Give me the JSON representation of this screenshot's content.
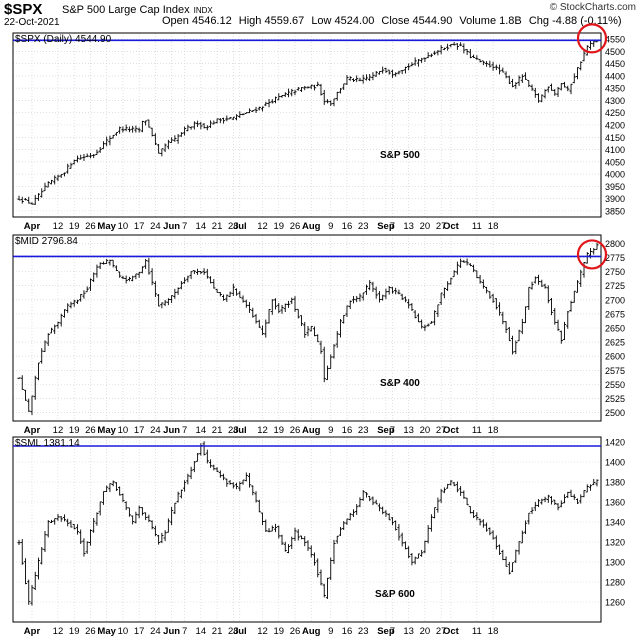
{
  "header": {
    "ticker": "$SPX",
    "name": "S&P 500 Large Cap Index",
    "exchange": "INDX",
    "date": "22-Oct-2021",
    "open": "Open 4546.12",
    "high": "High 4559.67",
    "low": "Low 4524.00",
    "close": "Close 4544.90",
    "volume": "Volume 1.8B",
    "change": "Chg -4.88 (-0.11%)",
    "copyright": "© StockCharts.com"
  },
  "colors": {
    "bars": "#000000",
    "resistance_line": "#1a1adc",
    "highlight_circle": "#e0161b",
    "grid": "#cccccc",
    "panel_border": "#000000"
  },
  "chart_data": [
    {
      "type": "line",
      "style": "ohlc-bars",
      "legend": "$SPX (Daily) 4544.90",
      "label": "S&P 500",
      "ylim": [
        3825,
        4575
      ],
      "yticks": [
        3850,
        3900,
        3950,
        4000,
        4050,
        4100,
        4150,
        4200,
        4250,
        4300,
        4350,
        4400,
        4450,
        4500,
        4550
      ],
      "ytick_labels": [
        "3850",
        "3900",
        "3950",
        "4000",
        "4050",
        "4100",
        "4150",
        "4200",
        "4250",
        "4300",
        "4350",
        "4400",
        "4450",
        "4500",
        "4550"
      ],
      "horizontal_line": 4545,
      "highlight_at_end": true,
      "anchors": [
        [
          0,
          3900
        ],
        [
          4,
          3880
        ],
        [
          9,
          3960
        ],
        [
          14,
          4010
        ],
        [
          17,
          4060
        ],
        [
          23,
          4080
        ],
        [
          27,
          4135
        ],
        [
          31,
          4185
        ],
        [
          37,
          4180
        ],
        [
          38,
          4210
        ],
        [
          39,
          4220
        ],
        [
          41,
          4160
        ],
        [
          43,
          4080
        ],
        [
          46,
          4130
        ],
        [
          48,
          4140
        ],
        [
          51,
          4180
        ],
        [
          55,
          4210
        ],
        [
          57,
          4190
        ],
        [
          61,
          4220
        ],
        [
          66,
          4230
        ],
        [
          70,
          4250
        ],
        [
          74,
          4270
        ],
        [
          78,
          4300
        ],
        [
          83,
          4330
        ],
        [
          87,
          4350
        ],
        [
          92,
          4360
        ],
        [
          94,
          4300
        ],
        [
          96,
          4290
        ],
        [
          101,
          4390
        ],
        [
          105,
          4380
        ],
        [
          109,
          4400
        ],
        [
          112,
          4430
        ],
        [
          115,
          4410
        ],
        [
          120,
          4440
        ],
        [
          124,
          4470
        ],
        [
          127,
          4490
        ],
        [
          130,
          4510
        ],
        [
          134,
          4530
        ],
        [
          136,
          4520
        ],
        [
          139,
          4480
        ],
        [
          143,
          4450
        ],
        [
          146,
          4440
        ],
        [
          149,
          4410
        ],
        [
          152,
          4360
        ],
        [
          155,
          4400
        ],
        [
          157,
          4360
        ],
        [
          160,
          4300
        ],
        [
          163,
          4360
        ],
        [
          165,
          4330
        ],
        [
          167,
          4370
        ],
        [
          169,
          4340
        ],
        [
          171,
          4400
        ],
        [
          173,
          4460
        ],
        [
          175,
          4520
        ],
        [
          178,
          4545
        ]
      ]
    },
    {
      "type": "line",
      "style": "ohlc-bars",
      "legend": "$MID 2796.84",
      "label": "S&P 400",
      "ylim": [
        2485,
        2815
      ],
      "yticks": [
        2500,
        2525,
        2550,
        2575,
        2600,
        2625,
        2650,
        2675,
        2700,
        2725,
        2750,
        2775,
        2800
      ],
      "ytick_labels": [
        "2500",
        "2525",
        "2550",
        "2575",
        "2600",
        "2625",
        "2650",
        "2675",
        "2700",
        "2725",
        "2750",
        "2775",
        "2800"
      ],
      "horizontal_line": 2777,
      "highlight_at_end": true,
      "anchors": [
        [
          0,
          2560
        ],
        [
          3,
          2500
        ],
        [
          6,
          2590
        ],
        [
          9,
          2640
        ],
        [
          12,
          2660
        ],
        [
          15,
          2690
        ],
        [
          18,
          2700
        ],
        [
          21,
          2720
        ],
        [
          24,
          2760
        ],
        [
          28,
          2770
        ],
        [
          31,
          2740
        ],
        [
          34,
          2735
        ],
        [
          37,
          2750
        ],
        [
          39,
          2770
        ],
        [
          41,
          2730
        ],
        [
          43,
          2690
        ],
        [
          47,
          2705
        ],
        [
          50,
          2730
        ],
        [
          53,
          2750
        ],
        [
          57,
          2750
        ],
        [
          60,
          2720
        ],
        [
          63,
          2700
        ],
        [
          66,
          2720
        ],
        [
          70,
          2690
        ],
        [
          73,
          2660
        ],
        [
          75,
          2640
        ],
        [
          78,
          2700
        ],
        [
          80,
          2680
        ],
        [
          84,
          2700
        ],
        [
          88,
          2640
        ],
        [
          90,
          2650
        ],
        [
          93,
          2610
        ],
        [
          94,
          2560
        ],
        [
          96,
          2600
        ],
        [
          99,
          2660
        ],
        [
          102,
          2700
        ],
        [
          105,
          2705
        ],
        [
          108,
          2730
        ],
        [
          111,
          2700
        ],
        [
          114,
          2720
        ],
        [
          117,
          2710
        ],
        [
          120,
          2690
        ],
        [
          124,
          2650
        ],
        [
          127,
          2660
        ],
        [
          130,
          2710
        ],
        [
          133,
          2740
        ],
        [
          136,
          2770
        ],
        [
          139,
          2760
        ],
        [
          142,
          2730
        ],
        [
          146,
          2700
        ],
        [
          150,
          2650
        ],
        [
          152,
          2610
        ],
        [
          155,
          2660
        ],
        [
          157,
          2720
        ],
        [
          159,
          2740
        ],
        [
          162,
          2720
        ],
        [
          165,
          2660
        ],
        [
          167,
          2630
        ],
        [
          169,
          2680
        ],
        [
          172,
          2730
        ],
        [
          175,
          2780
        ],
        [
          178,
          2797
        ]
      ]
    },
    {
      "type": "line",
      "style": "ohlc-bars",
      "legend": "$SML 1381.14",
      "label": "S&P 600",
      "ylim": [
        1240,
        1425
      ],
      "yticks": [
        1260,
        1280,
        1300,
        1320,
        1340,
        1360,
        1380,
        1400,
        1420
      ],
      "ytick_labels": [
        "1260",
        "1280",
        "1300",
        "1320",
        "1340",
        "1360",
        "1380",
        "1400",
        "1420"
      ],
      "horizontal_line": 1416,
      "highlight_at_end": false,
      "anchors": [
        [
          0,
          1320
        ],
        [
          3,
          1260
        ],
        [
          6,
          1300
        ],
        [
          9,
          1340
        ],
        [
          12,
          1345
        ],
        [
          15,
          1340
        ],
        [
          18,
          1330
        ],
        [
          20,
          1310
        ],
        [
          23,
          1340
        ],
        [
          26,
          1370
        ],
        [
          29,
          1380
        ],
        [
          32,
          1360
        ],
        [
          35,
          1340
        ],
        [
          37,
          1355
        ],
        [
          40,
          1340
        ],
        [
          43,
          1320
        ],
        [
          45,
          1330
        ],
        [
          48,
          1360
        ],
        [
          51,
          1380
        ],
        [
          54,
          1400
        ],
        [
          56,
          1418
        ],
        [
          58,
          1400
        ],
        [
          61,
          1390
        ],
        [
          64,
          1380
        ],
        [
          67,
          1375
        ],
        [
          70,
          1385
        ],
        [
          73,
          1360
        ],
        [
          76,
          1330
        ],
        [
          79,
          1335
        ],
        [
          82,
          1310
        ],
        [
          85,
          1330
        ],
        [
          88,
          1320
        ],
        [
          91,
          1300
        ],
        [
          94,
          1265
        ],
        [
          97,
          1320
        ],
        [
          100,
          1340
        ],
        [
          103,
          1350
        ],
        [
          106,
          1370
        ],
        [
          109,
          1360
        ],
        [
          112,
          1350
        ],
        [
          115,
          1340
        ],
        [
          118,
          1320
        ],
        [
          121,
          1300
        ],
        [
          124,
          1310
        ],
        [
          127,
          1345
        ],
        [
          130,
          1370
        ],
        [
          133,
          1380
        ],
        [
          136,
          1370
        ],
        [
          139,
          1350
        ],
        [
          142,
          1340
        ],
        [
          145,
          1330
        ],
        [
          148,
          1310
        ],
        [
          151,
          1290
        ],
        [
          154,
          1320
        ],
        [
          157,
          1350
        ],
        [
          160,
          1360
        ],
        [
          163,
          1365
        ],
        [
          166,
          1355
        ],
        [
          169,
          1370
        ],
        [
          172,
          1360
        ],
        [
          175,
          1375
        ],
        [
          178,
          1381
        ]
      ]
    }
  ],
  "x_axis": {
    "ticks": [
      {
        "i": 4,
        "label": "Apr",
        "bold": true
      },
      {
        "i": 12,
        "label": "12",
        "bold": false
      },
      {
        "i": 17,
        "label": "19",
        "bold": false
      },
      {
        "i": 22,
        "label": "26",
        "bold": false
      },
      {
        "i": 27,
        "label": "May",
        "bold": true
      },
      {
        "i": 32,
        "label": "10",
        "bold": false
      },
      {
        "i": 37,
        "label": "17",
        "bold": false
      },
      {
        "i": 42,
        "label": "24",
        "bold": false
      },
      {
        "i": 47,
        "label": "Jun",
        "bold": true
      },
      {
        "i": 51,
        "label": "7",
        "bold": false
      },
      {
        "i": 56,
        "label": "14",
        "bold": false
      },
      {
        "i": 61,
        "label": "21",
        "bold": false
      },
      {
        "i": 66,
        "label": "28",
        "bold": false
      },
      {
        "i": 68,
        "label": "Jul",
        "bold": true
      },
      {
        "i": 75,
        "label": "12",
        "bold": false
      },
      {
        "i": 80,
        "label": "19",
        "bold": false
      },
      {
        "i": 85,
        "label": "26",
        "bold": false
      },
      {
        "i": 90,
        "label": "Aug",
        "bold": true
      },
      {
        "i": 96,
        "label": "9",
        "bold": false
      },
      {
        "i": 101,
        "label": "16",
        "bold": false
      },
      {
        "i": 106,
        "label": "23",
        "bold": false
      },
      {
        "i": 113,
        "label": "Sep",
        "bold": true
      },
      {
        "i": 115,
        "label": "7",
        "bold": false
      },
      {
        "i": 120,
        "label": "13",
        "bold": false
      },
      {
        "i": 125,
        "label": "20",
        "bold": false
      },
      {
        "i": 130,
        "label": "27",
        "bold": false
      },
      {
        "i": 133,
        "label": "Oct",
        "bold": true
      },
      {
        "i": 141,
        "label": "11",
        "bold": false
      },
      {
        "i": 146,
        "label": "18",
        "bold": false
      }
    ]
  }
}
